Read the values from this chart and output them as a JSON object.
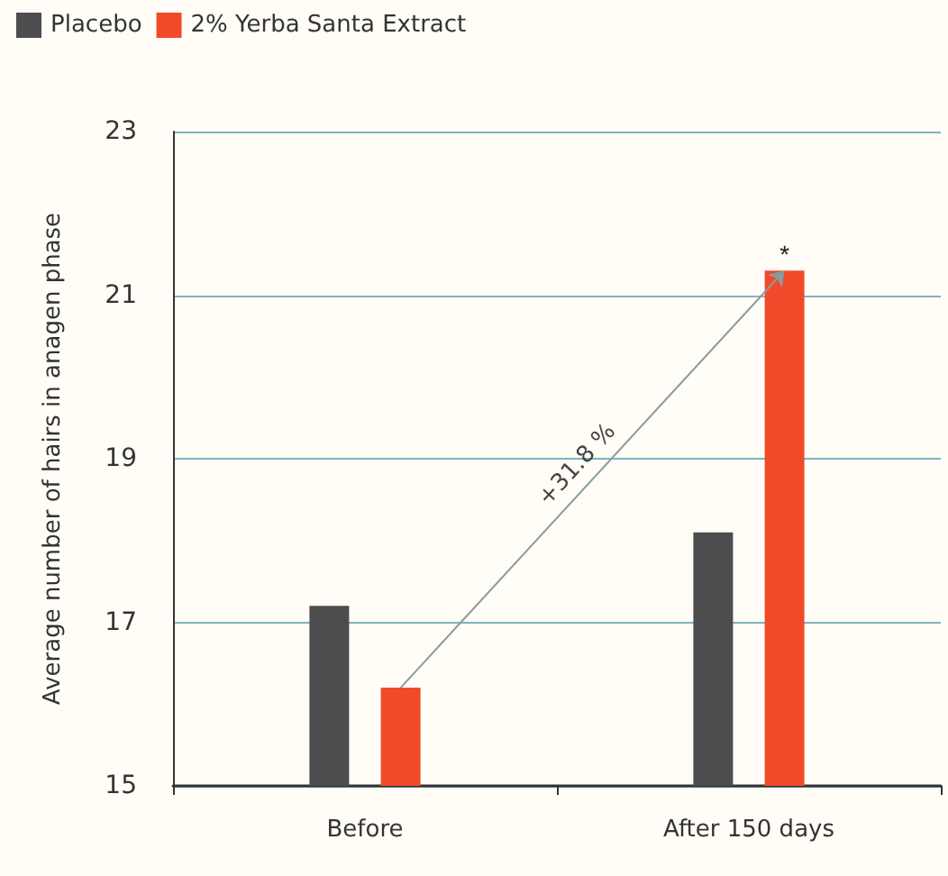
{
  "chart_data": {
    "type": "bar",
    "ylabel": "Average number of hairs in anagen phase",
    "categories": [
      "Before",
      "After 150 days"
    ],
    "series": [
      {
        "name": "Placebo",
        "color": "#4d4d4f",
        "values": [
          17.2,
          18.1
        ]
      },
      {
        "name": "2% Yerba Santa Extract",
        "color": "#f04a2b",
        "values": [
          16.2,
          21.3
        ]
      }
    ],
    "ylim": [
      15,
      23
    ],
    "yticks": [
      15,
      17,
      19,
      21,
      23
    ],
    "grid": "y",
    "legend": "top left",
    "annotations": [
      "+31.8 %",
      "*"
    ]
  }
}
